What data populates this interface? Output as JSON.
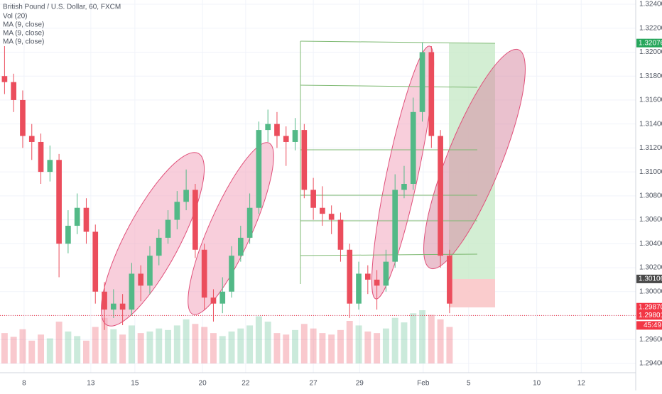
{
  "chart_data": {
    "type": "candlestick",
    "title": "British Pound / U.S. Dollar, 60, FXCM",
    "indicators": [
      "Vol (20)",
      "MA (9, close)",
      "MA (9, close)",
      "MA (9, close)"
    ],
    "open": [
      1.318,
      1.3175,
      1.316,
      1.313,
      1.3125,
      1.31,
      1.311,
      1.304,
      1.3055,
      1.307,
      1.305,
      1.3,
      1.2985,
      1.299,
      1.2985,
      1.3015,
      1.3005,
      1.303,
      1.3045,
      1.306,
      1.3075,
      1.3085,
      1.3035,
      1.2995,
      1.299,
      1.3,
      1.303,
      1.3045,
      1.307,
      1.3135,
      1.314,
      1.313,
      1.3125,
      1.3135,
      1.3085,
      1.307,
      1.3065,
      1.306,
      1.3035,
      1.299,
      1.3015,
      1.301,
      1.3005,
      1.3025,
      1.3085,
      1.309,
      1.315,
      1.32,
      1.313,
      1.303
    ],
    "high": [
      1.3205,
      1.3182,
      1.3168,
      1.314,
      1.3132,
      1.3122,
      1.3115,
      1.3068,
      1.3082,
      1.3078,
      1.3056,
      1.3008,
      1.3002,
      1.2998,
      1.3024,
      1.3022,
      1.3038,
      1.3052,
      1.3068,
      1.3084,
      1.3102,
      1.309,
      1.304,
      1.3002,
      1.3012,
      1.3038,
      1.3055,
      1.3082,
      1.3142,
      1.3152,
      1.315,
      1.3138,
      1.3145,
      1.314,
      1.3095,
      1.3088,
      1.3072,
      1.3066,
      1.304,
      1.3025,
      1.3022,
      1.3018,
      1.3035,
      1.3098,
      1.3105,
      1.3162,
      1.3208,
      1.3205,
      1.3135,
      1.3035
    ],
    "low": [
      1.3165,
      1.315,
      1.312,
      1.311,
      1.309,
      1.3092,
      1.3012,
      1.3032,
      1.3048,
      1.304,
      1.299,
      1.2968,
      1.2978,
      1.2972,
      1.298,
      1.2992,
      1.2998,
      1.3022,
      1.304,
      1.3052,
      1.3068,
      1.3028,
      1.2985,
      1.2975,
      1.2982,
      1.2995,
      1.3025,
      1.304,
      1.3065,
      1.3125,
      1.312,
      1.3105,
      1.3118,
      1.3078,
      1.306,
      1.3055,
      1.3048,
      1.3025,
      1.2978,
      1.2985,
      1.2998,
      1.2985,
      1.3,
      1.302,
      1.3078,
      1.3085,
      1.3142,
      1.312,
      1.302,
      1.2982
    ],
    "close": [
      1.3175,
      1.316,
      1.313,
      1.3125,
      1.31,
      1.311,
      1.304,
      1.3055,
      1.307,
      1.305,
      1.3,
      1.2985,
      1.299,
      1.2985,
      1.3015,
      1.3005,
      1.303,
      1.3045,
      1.306,
      1.3075,
      1.3085,
      1.3035,
      1.2995,
      1.299,
      1.3,
      1.303,
      1.3045,
      1.307,
      1.3135,
      1.314,
      1.313,
      1.3125,
      1.3135,
      1.3085,
      1.307,
      1.3065,
      1.306,
      1.3035,
      1.299,
      1.3015,
      1.301,
      1.3005,
      1.3025,
      1.3085,
      1.309,
      1.315,
      1.32,
      1.313,
      1.303,
      1.299
    ],
    "volume": [
      40,
      35,
      45,
      30,
      38,
      33,
      55,
      42,
      36,
      30,
      48,
      60,
      45,
      38,
      50,
      40,
      42,
      46,
      44,
      50,
      58,
      52,
      48,
      40,
      36,
      42,
      46,
      50,
      62,
      55,
      40,
      38,
      44,
      52,
      46,
      40,
      38,
      44,
      56,
      50,
      42,
      40,
      46,
      60,
      54,
      66,
      70,
      64,
      58,
      48
    ],
    "up_color": "#53b987",
    "down_color": "#eb4d5c",
    "xlim": [
      0,
      70
    ],
    "xticks": [
      {
        "value": 2.65,
        "label": "8"
      },
      {
        "value": 10,
        "label": "13"
      },
      {
        "value": 14.85,
        "label": "15"
      },
      {
        "value": 22.3,
        "label": "20"
      },
      {
        "value": 27.05,
        "label": "22"
      },
      {
        "value": 34.5,
        "label": "27"
      },
      {
        "value": 39.6,
        "label": "29"
      },
      {
        "value": 46.6,
        "label": "Feb"
      },
      {
        "value": 51.6,
        "label": "5"
      },
      {
        "value": 59.1,
        "label": "10"
      },
      {
        "value": 64,
        "label": "12"
      }
    ],
    "ylim": [
      1.294,
      1.324
    ],
    "yticks": [
      {
        "value": 1.294,
        "label": "1.29400"
      },
      {
        "value": 1.296,
        "label": "1.29600"
      },
      {
        "value": 1.298,
        "label": "1.29800"
      },
      {
        "value": 1.3,
        "label": "1.30000"
      },
      {
        "value": 1.302,
        "label": "1.30200"
      },
      {
        "value": 1.304,
        "label": "1.30400"
      },
      {
        "value": 1.306,
        "label": "1.30600"
      },
      {
        "value": 1.308,
        "label": "1.30800"
      },
      {
        "value": 1.31,
        "label": "1.31000"
      },
      {
        "value": 1.312,
        "label": "1.31200"
      },
      {
        "value": 1.314,
        "label": "1.31400"
      },
      {
        "value": 1.316,
        "label": "1.31600"
      },
      {
        "value": 1.318,
        "label": "1.31800"
      },
      {
        "value": 1.32,
        "label": "1.32000"
      },
      {
        "value": 1.322,
        "label": "1.32200"
      },
      {
        "value": 1.324,
        "label": "1.32400"
      }
    ],
    "grid": true,
    "price_labels": [
      {
        "value": 1.32076,
        "color": "#26a65b"
      },
      {
        "value": 1.30106,
        "color": "#4a4a4a"
      },
      {
        "value": {
          "value": 1.2987,
          "label": "1.29870"
        },
        "color": "#f23645"
      },
      {
        "value": 1.29801,
        "color": "#f23645",
        "line": true
      }
    ],
    "countdown": "45:49"
  }
}
